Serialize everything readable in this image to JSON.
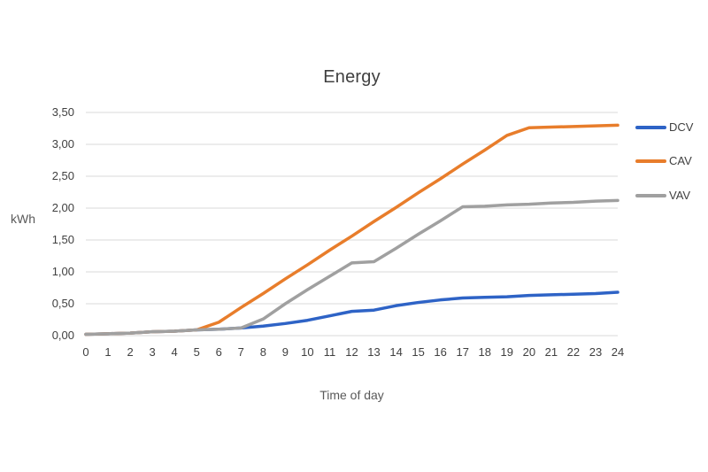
{
  "chart_data": {
    "type": "line",
    "title": "Energy",
    "xlabel": "Time of day",
    "ylabel": "kWh",
    "x": [
      0,
      1,
      2,
      3,
      4,
      5,
      6,
      7,
      8,
      9,
      10,
      11,
      12,
      13,
      14,
      15,
      16,
      17,
      18,
      19,
      20,
      21,
      22,
      23,
      24
    ],
    "series": [
      {
        "name": "DCV",
        "color": "#2E63C6",
        "values": [
          0.02,
          0.03,
          0.04,
          0.06,
          0.07,
          0.09,
          0.1,
          0.12,
          0.15,
          0.19,
          0.24,
          0.31,
          0.38,
          0.4,
          0.47,
          0.52,
          0.56,
          0.59,
          0.6,
          0.61,
          0.63,
          0.64,
          0.65,
          0.66,
          0.68
        ]
      },
      {
        "name": "CAV",
        "color": "#E87D2B",
        "values": [
          0.02,
          0.03,
          0.04,
          0.06,
          0.07,
          0.09,
          0.21,
          0.44,
          0.66,
          0.89,
          1.11,
          1.34,
          1.56,
          1.79,
          2.01,
          2.24,
          2.46,
          2.69,
          2.91,
          3.14,
          3.26,
          3.27,
          3.28,
          3.29,
          3.3
        ]
      },
      {
        "name": "VAV",
        "color": "#A0A0A0",
        "values": [
          0.02,
          0.03,
          0.04,
          0.06,
          0.07,
          0.09,
          0.1,
          0.12,
          0.26,
          0.5,
          0.72,
          0.93,
          1.14,
          1.16,
          1.37,
          1.59,
          1.8,
          2.02,
          2.03,
          2.05,
          2.06,
          2.08,
          2.09,
          2.11,
          2.12
        ]
      }
    ],
    "ylim": [
      0,
      3.5
    ],
    "ytick_values": [
      0,
      0.5,
      1,
      1.5,
      2,
      2.5,
      3,
      3.5
    ],
    "ytick_labels": [
      "0,00",
      "0,50",
      "1,00",
      "1,50",
      "2,00",
      "2,50",
      "3,00",
      "3,50"
    ],
    "xlim": [
      0,
      24
    ],
    "grid": "horizontal",
    "legend_position": "right",
    "colors": {
      "gridline": "#D9D9D9",
      "tick_text": "#404040",
      "axis_title_text": "#595959",
      "title_text": "#404040",
      "background": "#FFFFFF"
    }
  }
}
